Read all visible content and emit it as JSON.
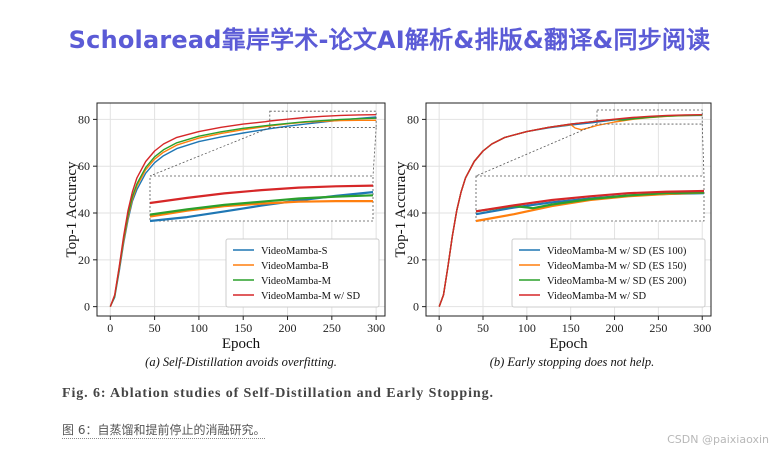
{
  "banner": {
    "title": "Scholaread靠岸学术-论文AI解析&排版&翻译&同步阅读"
  },
  "chart_data": [
    {
      "type": "line",
      "subcaption": "(a) Self-Distillation avoids overfitting.",
      "xlabel": "Epoch",
      "ylabel": "Top-1 Accuracy",
      "xlim": [
        -15,
        310
      ],
      "ylim": [
        -4,
        87
      ],
      "xticks": [
        0,
        50,
        100,
        150,
        200,
        250,
        300
      ],
      "yticks": [
        0,
        20,
        40,
        60,
        80
      ],
      "grid": true,
      "legend": "lower-right",
      "inset": {
        "xrange": [
          180,
          300
        ],
        "yrange": [
          76.5,
          83.5
        ]
      },
      "series": [
        {
          "name": "VideoMamba-S",
          "color": "#1f77b4",
          "points": [
            [
              0,
              0
            ],
            [
              5,
              4
            ],
            [
              10,
              15
            ],
            [
              15,
              27
            ],
            [
              20,
              37
            ],
            [
              25,
              45
            ],
            [
              30,
              50
            ],
            [
              40,
              57
            ],
            [
              50,
              61.5
            ],
            [
              60,
              64.5
            ],
            [
              75,
              67.5
            ],
            [
              100,
              70.5
            ],
            [
              125,
              72.5
            ],
            [
              150,
              74.2
            ],
            [
              175,
              75.7
            ],
            [
              180,
              76.0
            ],
            [
              200,
              77.1
            ],
            [
              220,
              78.0
            ],
            [
              240,
              78.9
            ],
            [
              260,
              79.7
            ],
            [
              280,
              80.4
            ],
            [
              300,
              81.0
            ]
          ]
        },
        {
          "name": "VideoMamba-B",
          "color": "#ff7f0e",
          "points": [
            [
              0,
              0
            ],
            [
              5,
              4.5
            ],
            [
              10,
              16
            ],
            [
              15,
              28
            ],
            [
              20,
              38
            ],
            [
              25,
              46
            ],
            [
              30,
              51.5
            ],
            [
              40,
              58.5
            ],
            [
              50,
              63
            ],
            [
              60,
              66
            ],
            [
              75,
              69
            ],
            [
              100,
              72
            ],
            [
              125,
              74
            ],
            [
              150,
              75.6
            ],
            [
              175,
              76.9
            ],
            [
              180,
              77.2
            ],
            [
              200,
              78.1
            ],
            [
              220,
              78.8
            ],
            [
              240,
              79.2
            ],
            [
              260,
              79.5
            ],
            [
              280,
              79.6
            ],
            [
              300,
              79.6
            ]
          ]
        },
        {
          "name": "VideoMamba-M",
          "color": "#2ca02c",
          "points": [
            [
              0,
              0
            ],
            [
              5,
              4.5
            ],
            [
              10,
              16.5
            ],
            [
              15,
              29
            ],
            [
              20,
              39
            ],
            [
              25,
              47
            ],
            [
              30,
              52.5
            ],
            [
              40,
              59.5
            ],
            [
              50,
              64
            ],
            [
              60,
              67
            ],
            [
              75,
              70
            ],
            [
              100,
              72.8
            ],
            [
              125,
              74.7
            ],
            [
              150,
              76.2
            ],
            [
              175,
              77.3
            ],
            [
              180,
              77.5
            ],
            [
              200,
              78.3
            ],
            [
              220,
              79.0
            ],
            [
              240,
              79.5
            ],
            [
              260,
              80.0
            ],
            [
              280,
              80.3
            ],
            [
              300,
              80.5
            ]
          ]
        },
        {
          "name": "VideoMamba-M w/ SD",
          "color": "#d62728",
          "points": [
            [
              0,
              0
            ],
            [
              5,
              5
            ],
            [
              10,
              17
            ],
            [
              15,
              30
            ],
            [
              20,
              41
            ],
            [
              25,
              49
            ],
            [
              30,
              55
            ],
            [
              40,
              62
            ],
            [
              50,
              66.5
            ],
            [
              60,
              69.5
            ],
            [
              75,
              72.3
            ],
            [
              100,
              74.8
            ],
            [
              125,
              76.6
            ],
            [
              150,
              78.0
            ],
            [
              175,
              79.0
            ],
            [
              180,
              79.3
            ],
            [
              200,
              80.1
            ],
            [
              220,
              80.8
            ],
            [
              240,
              81.3
            ],
            [
              260,
              81.7
            ],
            [
              280,
              81.9
            ],
            [
              300,
              82.0
            ]
          ]
        }
      ]
    },
    {
      "type": "line",
      "subcaption": "(b) Early stopping does not help.",
      "xlabel": "Epoch",
      "ylabel": "Top-1 Accuracy",
      "xlim": [
        -15,
        310
      ],
      "ylim": [
        -4,
        87
      ],
      "xticks": [
        0,
        50,
        100,
        150,
        200,
        250,
        300
      ],
      "yticks": [
        0,
        20,
        40,
        60,
        80
      ],
      "grid": true,
      "legend": "lower-right",
      "inset": {
        "xrange": [
          180,
          300
        ],
        "yrange": [
          78,
          84
        ]
      },
      "series": [
        {
          "name": "VideoMamba-M w/ SD (ES 100)",
          "color": "#1f77b4",
          "points": [
            [
              0,
              0
            ],
            [
              5,
              5
            ],
            [
              10,
              17
            ],
            [
              15,
              30
            ],
            [
              20,
              41
            ],
            [
              25,
              49
            ],
            [
              30,
              55
            ],
            [
              40,
              62
            ],
            [
              50,
              66.5
            ],
            [
              60,
              69.5
            ],
            [
              75,
              72.3
            ],
            [
              100,
              74.8
            ],
            [
              125,
              76.4
            ],
            [
              150,
              77.6
            ],
            [
              175,
              78.6
            ],
            [
              180,
              78.9
            ],
            [
              200,
              79.8
            ],
            [
              220,
              80.5
            ],
            [
              240,
              81.0
            ],
            [
              260,
              81.4
            ],
            [
              280,
              81.6
            ],
            [
              300,
              81.7
            ]
          ]
        },
        {
          "name": "VideoMamba-M w/ SD (ES 150)",
          "color": "#ff7f0e",
          "points": [
            [
              0,
              0
            ],
            [
              5,
              5
            ],
            [
              10,
              17
            ],
            [
              15,
              30
            ],
            [
              20,
              41
            ],
            [
              25,
              49
            ],
            [
              30,
              55
            ],
            [
              40,
              62
            ],
            [
              50,
              66.5
            ],
            [
              60,
              69.5
            ],
            [
              75,
              72.3
            ],
            [
              100,
              74.8
            ],
            [
              125,
              76.6
            ],
            [
              150,
              77.8
            ],
            [
              155,
              76.3
            ],
            [
              162,
              75.6
            ],
            [
              170,
              76.3
            ],
            [
              180,
              77.4
            ],
            [
              200,
              78.9
            ],
            [
              220,
              80.0
            ],
            [
              240,
              80.8
            ],
            [
              260,
              81.3
            ],
            [
              280,
              81.6
            ],
            [
              300,
              81.8
            ]
          ]
        },
        {
          "name": "VideoMamba-M w/ SD (ES 200)",
          "color": "#2ca02c",
          "points": [
            [
              0,
              0
            ],
            [
              5,
              5
            ],
            [
              10,
              17
            ],
            [
              15,
              30
            ],
            [
              20,
              41
            ],
            [
              25,
              49
            ],
            [
              30,
              55
            ],
            [
              40,
              62
            ],
            [
              50,
              66.5
            ],
            [
              60,
              69.5
            ],
            [
              75,
              72.3
            ],
            [
              100,
              74.8
            ],
            [
              125,
              76.6
            ],
            [
              150,
              78.0
            ],
            [
              175,
              79.0
            ],
            [
              180,
              79.3
            ],
            [
              200,
              80.0
            ],
            [
              210,
              79.7
            ],
            [
              220,
              80.2
            ],
            [
              240,
              80.9
            ],
            [
              260,
              81.4
            ],
            [
              280,
              81.7
            ],
            [
              300,
              81.8
            ]
          ]
        },
        {
          "name": "VideoMamba-M w/ SD",
          "color": "#d62728",
          "points": [
            [
              0,
              0
            ],
            [
              5,
              5
            ],
            [
              10,
              17
            ],
            [
              15,
              30
            ],
            [
              20,
              41
            ],
            [
              25,
              49
            ],
            [
              30,
              55
            ],
            [
              40,
              62
            ],
            [
              50,
              66.5
            ],
            [
              60,
              69.5
            ],
            [
              75,
              72.3
            ],
            [
              100,
              74.8
            ],
            [
              125,
              76.6
            ],
            [
              150,
              78.0
            ],
            [
              175,
              79.0
            ],
            [
              180,
              79.3
            ],
            [
              200,
              80.1
            ],
            [
              220,
              80.8
            ],
            [
              240,
              81.3
            ],
            [
              260,
              81.7
            ],
            [
              280,
              81.9
            ],
            [
              300,
              82.0
            ]
          ]
        }
      ]
    }
  ],
  "caption": {
    "figure": "Fig. 6: Ablation studies of Self-Distillation and Early Stopping.",
    "translation": "图 6：自蒸馏和提前停止的消融研究。"
  },
  "watermark": "CSDN @paixiaoxin"
}
